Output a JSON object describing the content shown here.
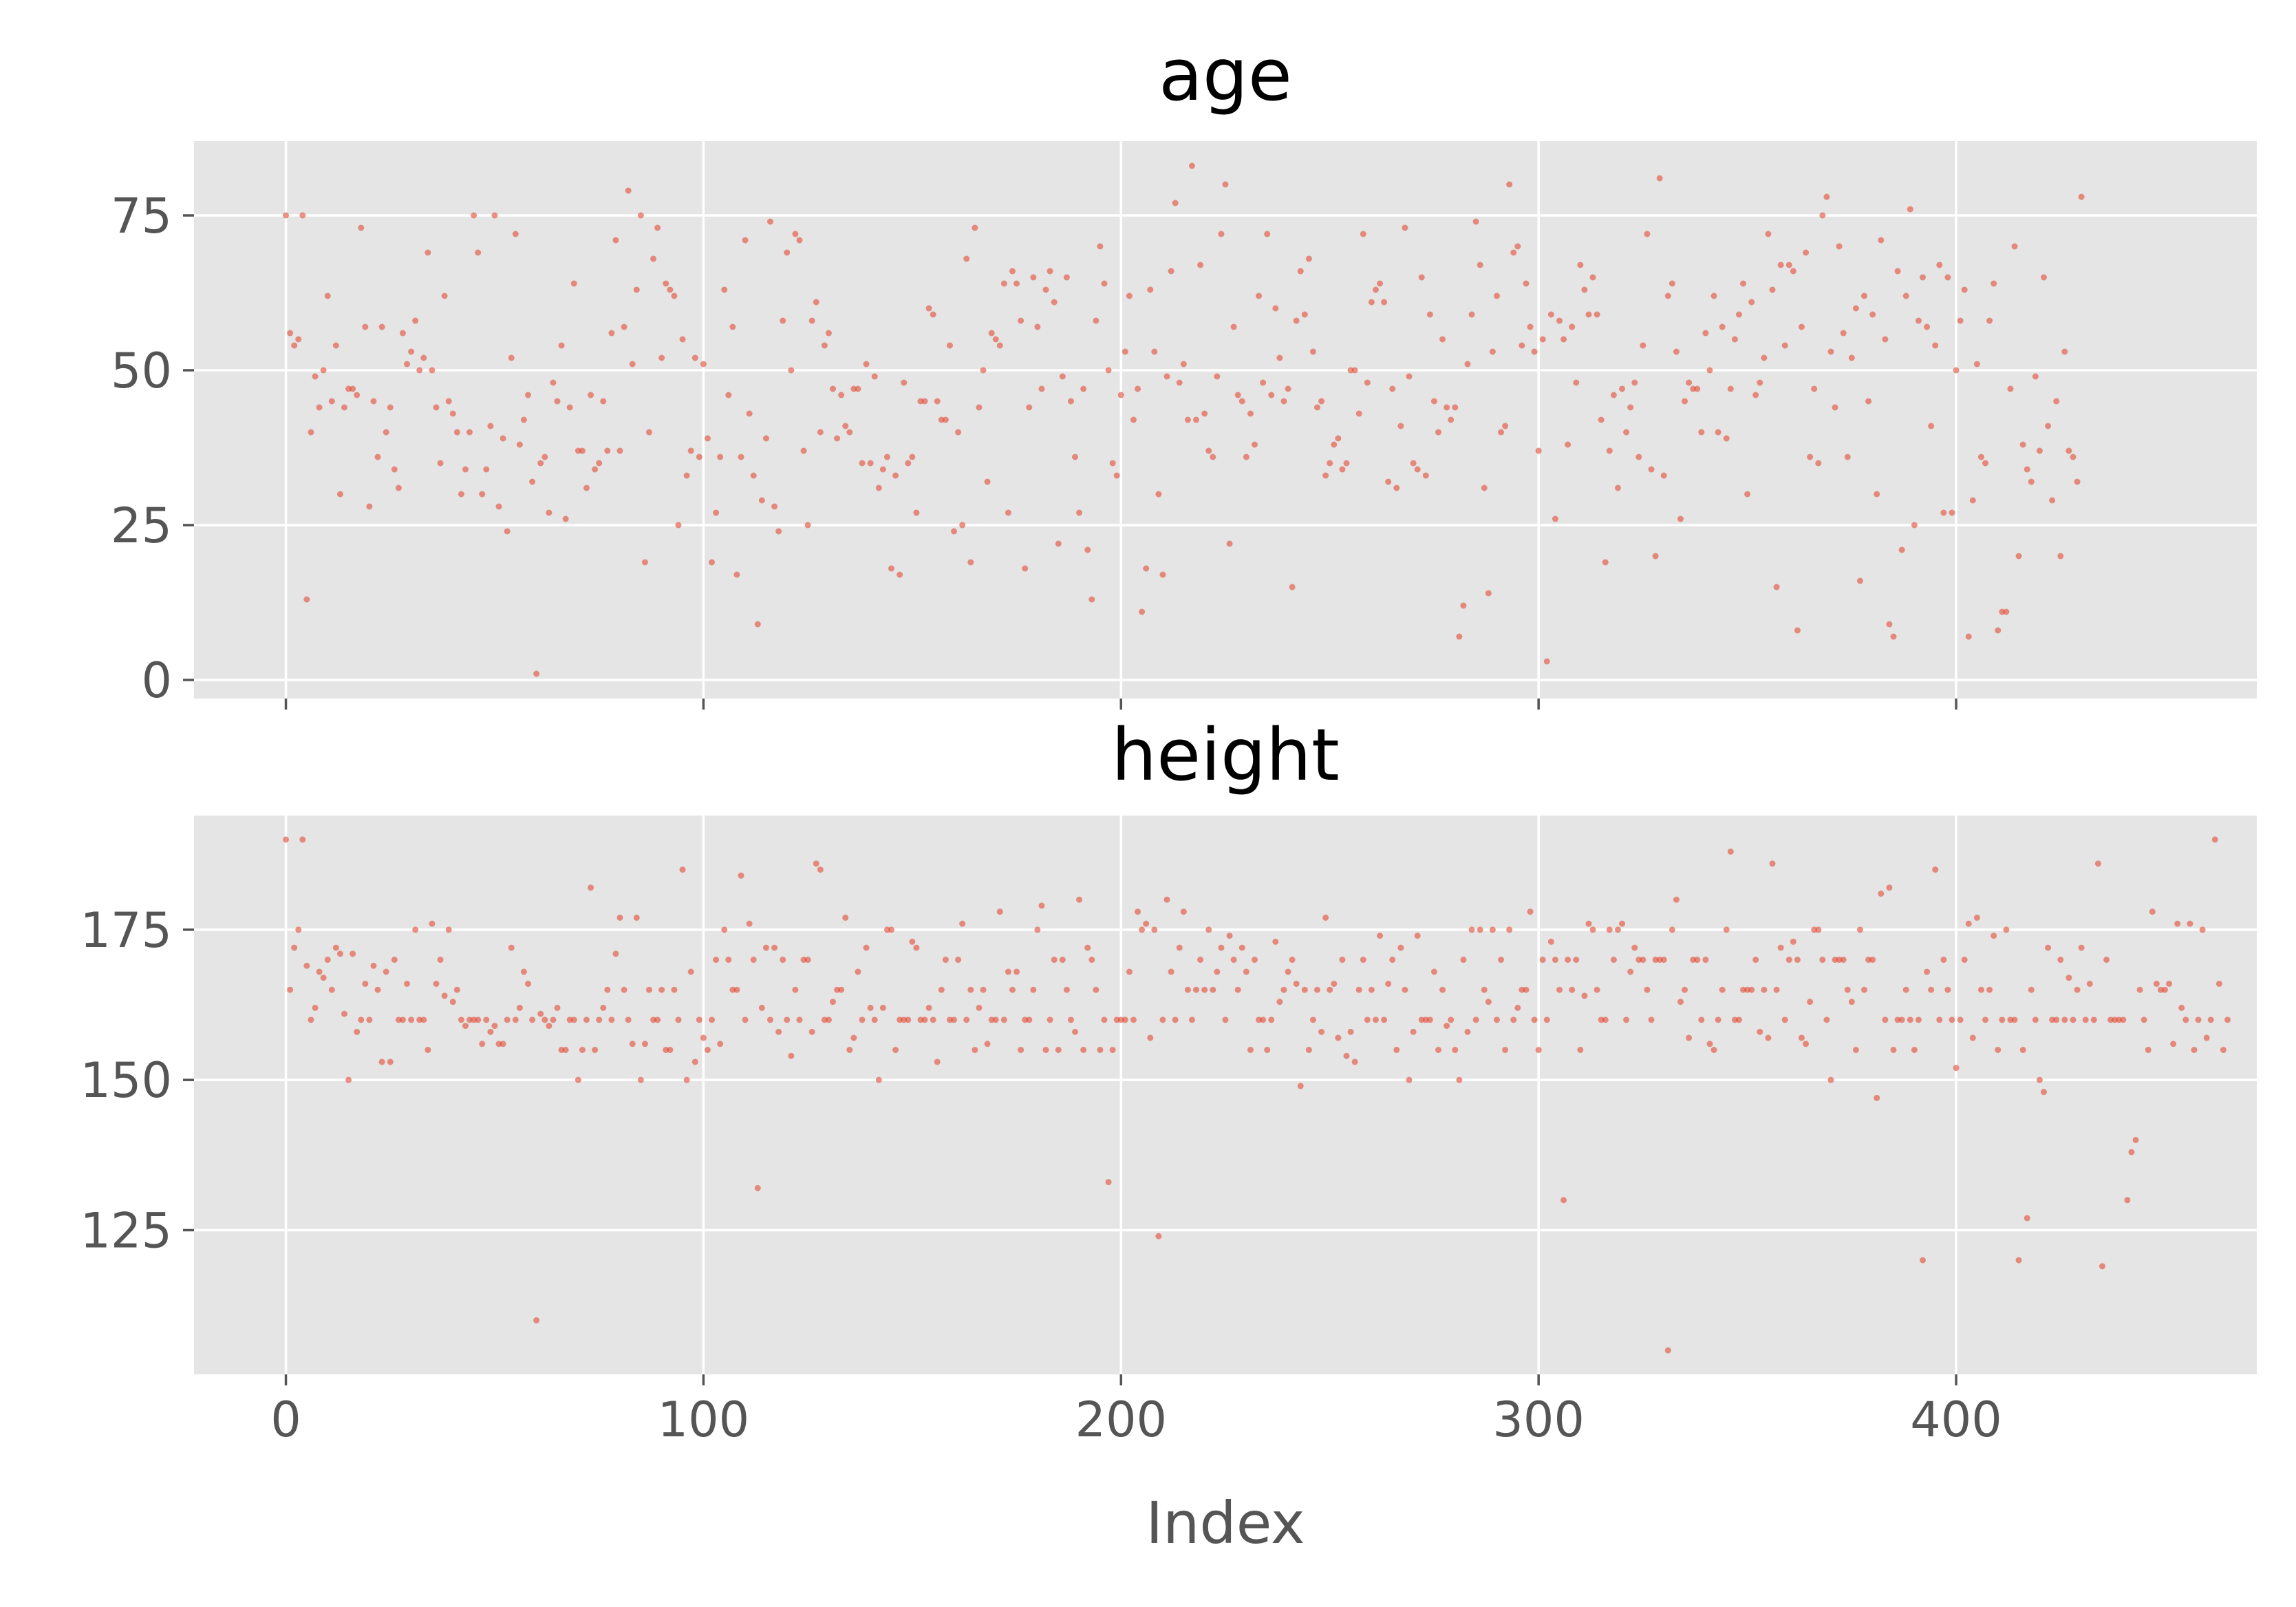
{
  "chart_data": [
    {
      "type": "scatter",
      "title": "age",
      "xlabel": "",
      "ylabel": "",
      "xlim": [
        -22,
        472
      ],
      "ylim": [
        -3,
        87
      ],
      "yticks": [
        0,
        25,
        50,
        75
      ],
      "xticks": [
        0,
        100,
        200,
        300,
        400
      ],
      "x_tick_labels_shown": false,
      "grid": true,
      "point_color": "#E24A33",
      "background": "#E5E5E5",
      "series": [
        {
          "values": [
            75,
            56,
            54,
            55,
            75,
            13,
            40,
            49,
            44,
            50,
            62,
            45,
            54,
            30,
            44,
            47,
            47,
            46,
            73,
            57,
            28,
            45,
            36,
            57,
            40,
            44,
            34,
            31,
            56,
            51,
            53,
            58,
            50,
            52,
            69,
            50,
            44,
            35,
            62,
            45,
            43,
            40,
            30,
            34,
            40,
            75,
            69,
            30,
            34,
            41,
            75,
            28,
            39,
            24,
            52,
            72,
            38,
            42,
            46,
            32,
            1,
            35,
            36,
            27,
            48,
            45,
            54,
            26,
            44,
            64,
            37,
            37,
            31,
            46,
            34,
            35,
            45,
            37,
            56,
            71,
            37,
            57,
            79,
            51,
            63,
            75,
            19,
            40,
            68,
            73,
            52,
            64,
            63,
            62,
            25,
            55,
            33,
            37,
            52,
            36,
            51,
            39,
            19,
            27,
            36,
            63,
            46,
            57,
            17,
            36,
            71,
            43,
            33,
            9,
            29,
            39,
            74,
            28,
            24,
            58,
            69,
            50,
            72,
            71,
            37,
            25,
            58,
            61,
            40,
            54,
            56,
            47,
            39,
            46,
            41,
            40,
            47,
            47,
            35,
            51,
            35,
            49,
            31,
            34,
            36,
            18,
            33,
            17,
            48,
            35,
            36,
            27,
            45,
            45,
            60,
            59,
            45,
            42,
            42,
            54,
            24,
            40,
            25,
            68,
            19,
            73,
            44,
            50,
            32,
            56,
            55,
            54,
            64,
            27,
            66,
            64,
            58,
            18,
            44,
            65,
            57,
            47,
            63,
            66,
            61,
            22,
            49,
            65,
            45,
            36,
            27,
            47,
            21,
            13,
            58,
            70,
            64,
            50,
            35,
            33,
            46,
            53,
            62,
            42,
            47,
            11,
            18,
            63,
            53,
            30,
            17,
            49,
            66,
            77,
            48,
            51,
            42,
            83,
            42,
            67,
            43,
            37,
            36,
            49,
            72,
            80,
            22,
            57,
            46,
            45,
            36,
            43,
            38,
            62,
            48,
            72,
            46,
            60,
            52,
            45,
            47,
            15,
            58,
            66,
            59,
            68,
            53,
            44,
            45,
            33,
            35,
            38,
            39,
            34,
            35,
            50,
            50,
            43,
            72,
            48,
            61,
            63,
            64,
            61,
            32,
            47,
            31,
            41,
            73,
            49,
            35,
            34,
            65,
            33,
            59,
            45,
            40,
            55,
            44,
            42,
            44,
            7,
            12,
            51,
            59,
            74,
            67,
            31,
            14,
            53,
            62,
            40,
            41,
            80,
            69,
            70,
            54,
            64,
            57,
            53,
            37,
            55,
            3,
            59,
            26,
            58,
            55,
            38,
            57,
            48,
            67,
            63,
            59,
            65,
            59,
            42,
            19,
            37,
            46,
            31,
            47,
            40,
            44,
            48,
            36,
            54,
            72,
            34,
            20,
            81,
            33,
            62,
            64,
            53,
            26,
            45,
            48,
            47,
            47,
            40,
            56,
            50,
            62,
            40,
            57,
            39,
            47,
            55,
            59,
            64,
            30,
            61,
            46,
            48,
            52,
            72,
            63,
            15,
            67,
            54,
            67,
            66,
            8,
            57,
            69,
            36,
            47,
            35,
            75,
            78,
            53,
            44,
            70,
            56,
            36,
            52,
            60,
            16,
            62,
            45,
            59,
            30,
            71,
            55,
            9,
            7,
            66,
            21,
            62,
            76,
            25,
            58,
            65,
            57,
            41,
            54,
            67,
            27,
            65,
            27,
            50,
            58,
            63,
            7,
            29,
            51,
            36,
            35,
            58,
            64,
            8,
            11,
            11,
            47,
            70,
            20,
            38,
            34,
            32,
            49,
            37,
            65,
            41,
            29,
            45,
            20,
            53,
            37,
            36,
            32,
            78
          ]
        }
      ]
    },
    {
      "type": "scatter",
      "title": "height",
      "xlabel": "Index",
      "ylabel": "",
      "xlim": [
        -22,
        472
      ],
      "ylim": [
        101,
        194
      ],
      "yticks": [
        125,
        150,
        175
      ],
      "xticks": [
        0,
        100,
        200,
        300,
        400
      ],
      "x_tick_labels": [
        "0",
        "100",
        "200",
        "300",
        "400"
      ],
      "grid": true,
      "point_color": "#E24A33",
      "background": "#E5E5E5",
      "series": [
        {
          "values": [
            190,
            165,
            172,
            175,
            190,
            169,
            160,
            162,
            168,
            167,
            170,
            165,
            172,
            171,
            161,
            150,
            171,
            158,
            160,
            166,
            160,
            169,
            165,
            153,
            168,
            153,
            170,
            160,
            160,
            166,
            160,
            175,
            160,
            160,
            155,
            176,
            166,
            170,
            164,
            175,
            163,
            165,
            160,
            159,
            160,
            160,
            160,
            156,
            160,
            158,
            159,
            156,
            156,
            160,
            172,
            160,
            162,
            168,
            166,
            160,
            110,
            161,
            160,
            159,
            160,
            162,
            155,
            155,
            160,
            160,
            150,
            155,
            160,
            182,
            155,
            160,
            162,
            165,
            160,
            171,
            177,
            165,
            160,
            156,
            177,
            150,
            156,
            165,
            160,
            160,
            165,
            155,
            155,
            165,
            160,
            185,
            150,
            168,
            153,
            160,
            157,
            155,
            160,
            170,
            156,
            175,
            170,
            165,
            165,
            184,
            160,
            176,
            170,
            132,
            162,
            172,
            160,
            172,
            158,
            170,
            160,
            154,
            165,
            160,
            170,
            170,
            158,
            186,
            185,
            160,
            160,
            163,
            165,
            165,
            177,
            155,
            157,
            168,
            160,
            172,
            162,
            160,
            150,
            162,
            175,
            175,
            155,
            160,
            160,
            160,
            173,
            172,
            160,
            160,
            162,
            160,
            153,
            165,
            170,
            160,
            160,
            170,
            176,
            160,
            165,
            155,
            162,
            165,
            156,
            160,
            160,
            178,
            160,
            168,
            165,
            168,
            155,
            160,
            160,
            165,
            175,
            179,
            155,
            160,
            170,
            155,
            170,
            165,
            160,
            158,
            180,
            155,
            172,
            170,
            165,
            155,
            160,
            133,
            155,
            160,
            160,
            160,
            168,
            160,
            178,
            175,
            176,
            157,
            175,
            124,
            160,
            180,
            168,
            160,
            172,
            178,
            165,
            160,
            165,
            170,
            165,
            175,
            165,
            168,
            172,
            160,
            174,
            170,
            165,
            172,
            168,
            155,
            170,
            160,
            160,
            155,
            160,
            173,
            163,
            165,
            168,
            170,
            166,
            149,
            165,
            155,
            160,
            165,
            158,
            177,
            165,
            166,
            157,
            170,
            154,
            158,
            153,
            165,
            170,
            160,
            165,
            160,
            174,
            160,
            166,
            170,
            155,
            172,
            165,
            150,
            158,
            174,
            160,
            160,
            160,
            168,
            155,
            165,
            159,
            160,
            155,
            150,
            170,
            158,
            175,
            160,
            175,
            165,
            163,
            175,
            160,
            170,
            155,
            175,
            160,
            162,
            165,
            165,
            178,
            160,
            155,
            170,
            160,
            173,
            170,
            165,
            130,
            170,
            165,
            170,
            155,
            164,
            176,
            175,
            165,
            160,
            160,
            175,
            170,
            175,
            176,
            160,
            168,
            172,
            170,
            170,
            165,
            160,
            170,
            170,
            170,
            105,
            175,
            180,
            163,
            165,
            157,
            170,
            170,
            160,
            170,
            156,
            155,
            160,
            165,
            175,
            188,
            160,
            160,
            165,
            165,
            165,
            170,
            158,
            165,
            157,
            186,
            165,
            172,
            160,
            170,
            173,
            170,
            157,
            156,
            163,
            175,
            175,
            170,
            160,
            150,
            170,
            170,
            170,
            165,
            163,
            155,
            175,
            165,
            170,
            170,
            147,
            181,
            160,
            182,
            155,
            160,
            160,
            165,
            160,
            155,
            160,
            120,
            168,
            165,
            185,
            160,
            170,
            165,
            160,
            152,
            160,
            170,
            176,
            157,
            177,
            165,
            160,
            165,
            174,
            155,
            160,
            175,
            160,
            160,
            120,
            155,
            127,
            165,
            160,
            150,
            148,
            172,
            160,
            160,
            170,
            160,
            167,
            160,
            165,
            172,
            160,
            166,
            160,
            186,
            119,
            170,
            160,
            160,
            160,
            160,
            130,
            138,
            140,
            165,
            160,
            155,
            178,
            166,
            165,
            165,
            166,
            156,
            176,
            162,
            160,
            176,
            155,
            160,
            175,
            157,
            160,
            190,
            166,
            155,
            160
          ]
        }
      ]
    }
  ]
}
